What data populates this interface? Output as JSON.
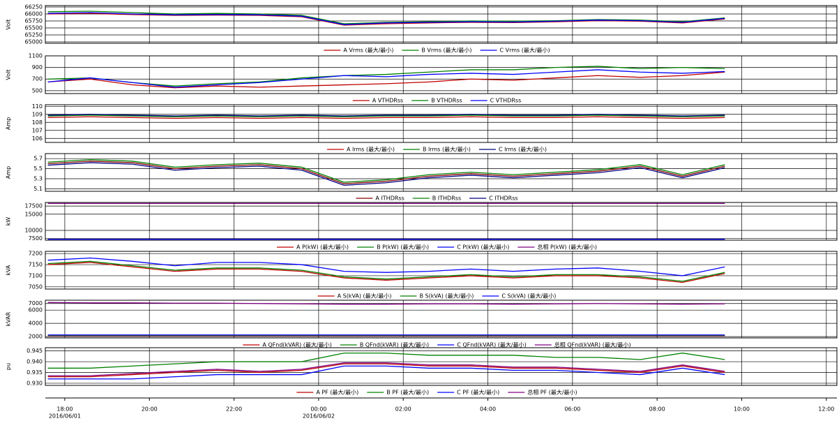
{
  "x_axis": {
    "xlim": [
      17.54,
      36.25
    ],
    "x": [
      17.6,
      18.6,
      19.6,
      20.6,
      21.6,
      22.6,
      23.6,
      24.6,
      25.6,
      26.6,
      27.6,
      28.6,
      29.6,
      30.6,
      31.6,
      32.6,
      33.6
    ],
    "xticks": [
      {
        "value": 18,
        "label": "18:00"
      },
      {
        "value": 20,
        "label": "20:00"
      },
      {
        "value": 22,
        "label": "22:00"
      },
      {
        "value": 24,
        "label": "00:00"
      },
      {
        "value": 26,
        "label": "02:00"
      },
      {
        "value": 28,
        "label": "04:00"
      },
      {
        "value": 30,
        "label": "06:00"
      },
      {
        "value": 32,
        "label": "08:00"
      },
      {
        "value": 34,
        "label": "10:00"
      },
      {
        "value": 36,
        "label": "12:00"
      }
    ],
    "date_labels": [
      {
        "value": 18,
        "label": "2016/06/01"
      },
      {
        "value": 24,
        "label": "2016/06/02"
      }
    ]
  },
  "chart_data": [
    {
      "type": "line",
      "ylabel": "Volt",
      "ylim": [
        64950,
        66300
      ],
      "yticks": [
        65000,
        65250,
        65500,
        65750,
        66000,
        66250
      ],
      "grid": true,
      "series": [
        {
          "name": "A Vrms (最大/最小)",
          "color": "#c00000",
          "values": [
            66000,
            66020,
            65980,
            65950,
            65960,
            65950,
            65900,
            65600,
            65650,
            65680,
            65700,
            65690,
            65720,
            65760,
            65740,
            65680,
            65820
          ]
        },
        {
          "name": "B Vrms (最大/最小)",
          "color": "#008000",
          "values": [
            66080,
            66100,
            66050,
            66000,
            66020,
            66000,
            65950,
            65650,
            65700,
            65720,
            65750,
            65740,
            65760,
            65800,
            65780,
            65720,
            65860
          ]
        },
        {
          "name": "C Vrms (最大/最小)",
          "color": "#0000ff",
          "values": [
            66020,
            66050,
            66000,
            65970,
            65980,
            65970,
            65920,
            65620,
            65680,
            65700,
            65720,
            65710,
            65740,
            65780,
            65760,
            65700,
            65840
          ]
        }
      ]
    },
    {
      "type": "line",
      "ylabel": "Volt",
      "ylim": [
        450,
        1100
      ],
      "yticks": [
        500,
        700,
        900,
        1100
      ],
      "grid": true,
      "series": [
        {
          "name": "A VTHDRss",
          "color": "#c00000",
          "values": [
            650,
            700,
            600,
            550,
            580,
            560,
            580,
            600,
            620,
            650,
            700,
            680,
            720,
            760,
            730,
            760,
            820
          ]
        },
        {
          "name": "B VTHDRss",
          "color": "#008000",
          "values": [
            700,
            720,
            640,
            580,
            620,
            650,
            720,
            760,
            780,
            820,
            860,
            860,
            900,
            920,
            880,
            900,
            880
          ]
        },
        {
          "name": "C VTHDRss",
          "color": "#0000ff",
          "values": [
            650,
            720,
            640,
            560,
            600,
            640,
            700,
            760,
            740,
            780,
            800,
            780,
            820,
            860,
            820,
            800,
            830
          ]
        }
      ]
    },
    {
      "type": "line",
      "ylabel": "Amp",
      "ylim": [
        105.5,
        110.2
      ],
      "yticks": [
        106,
        107,
        108,
        109,
        110
      ],
      "grid": true,
      "series": [
        {
          "name": "A Irms (最大/最小)",
          "color": "#c00000",
          "values": [
            108.6,
            108.7,
            108.6,
            108.5,
            108.6,
            108.5,
            108.6,
            108.5,
            108.6,
            108.6,
            108.7,
            108.6,
            108.6,
            108.7,
            108.6,
            108.5,
            108.6
          ]
        },
        {
          "name": "B Irms (最大/最小)",
          "color": "#008000",
          "values": [
            108.8,
            108.9,
            108.8,
            108.7,
            108.8,
            108.7,
            108.8,
            108.7,
            108.8,
            108.8,
            108.9,
            108.8,
            108.8,
            108.9,
            108.8,
            108.7,
            108.8
          ]
        },
        {
          "name": "C Irms (最大/最小)",
          "color": "#000080",
          "values": [
            108.9,
            109.0,
            108.9,
            108.8,
            108.9,
            108.8,
            108.9,
            108.8,
            108.9,
            108.9,
            109.0,
            108.9,
            108.9,
            109.0,
            108.9,
            108.8,
            108.9
          ]
        }
      ]
    },
    {
      "type": "line",
      "ylabel": "Amp",
      "ylim": [
        5.05,
        5.8
      ],
      "yticks": [
        5.1,
        5.3,
        5.5,
        5.7
      ],
      "grid": true,
      "series": [
        {
          "name": "A ITHDRss",
          "color": "#800000",
          "values": [
            5.6,
            5.65,
            5.62,
            5.5,
            5.55,
            5.58,
            5.5,
            5.2,
            5.25,
            5.35,
            5.4,
            5.35,
            5.4,
            5.45,
            5.55,
            5.35,
            5.55
          ]
        },
        {
          "name": "B ITHDRss",
          "color": "#008000",
          "values": [
            5.63,
            5.68,
            5.65,
            5.53,
            5.58,
            5.61,
            5.53,
            5.23,
            5.28,
            5.38,
            5.43,
            5.38,
            5.43,
            5.48,
            5.58,
            5.38,
            5.58
          ]
        },
        {
          "name": "C ITHDRss",
          "color": "#000080",
          "values": [
            5.57,
            5.62,
            5.59,
            5.47,
            5.52,
            5.55,
            5.47,
            5.17,
            5.22,
            5.32,
            5.37,
            5.32,
            5.37,
            5.42,
            5.52,
            5.32,
            5.52
          ]
        }
      ]
    },
    {
      "type": "line",
      "ylabel": "kW",
      "ylim": [
        7000,
        18600
      ],
      "yticks": [
        7500,
        10000,
        15000,
        17500
      ],
      "grid": true,
      "series": [
        {
          "name": "A P(kW) (最大/最小)",
          "color": "#c00000",
          "values": [
            7150,
            7150,
            7150,
            7150,
            7150,
            7150,
            7150,
            7150,
            7150,
            7150,
            7150,
            7150,
            7150,
            7150,
            7150,
            7150,
            7150
          ]
        },
        {
          "name": "B P(kW) (最大/最小)",
          "color": "#008000",
          "values": [
            7200,
            7200,
            7200,
            7200,
            7200,
            7200,
            7200,
            7200,
            7200,
            7200,
            7200,
            7200,
            7200,
            7200,
            7200,
            7200,
            7200
          ]
        },
        {
          "name": "C P(kW) (最大/最小)",
          "color": "#0000ff",
          "values": [
            7250,
            7250,
            7250,
            7250,
            7250,
            7250,
            7250,
            7250,
            7250,
            7250,
            7250,
            7250,
            7250,
            7250,
            7250,
            7250,
            7250
          ]
        },
        {
          "name": "总相 P(kW) (最大/最小)",
          "color": "#800080",
          "values": [
            18300,
            18300,
            18300,
            18300,
            18300,
            18300,
            18300,
            18300,
            18300,
            18300,
            18300,
            18300,
            18300,
            18300,
            18300,
            18300,
            18300
          ]
        }
      ]
    },
    {
      "type": "line",
      "ylabel": "kVA",
      "ylim": [
        7040,
        7210
      ],
      "yticks": [
        7050,
        7100,
        7150,
        7200
      ],
      "grid": true,
      "series": [
        {
          "name": "A S(kVA) (最大/最小)",
          "color": "#c00000",
          "values": [
            7150,
            7160,
            7140,
            7120,
            7130,
            7130,
            7120,
            7090,
            7080,
            7090,
            7100,
            7090,
            7100,
            7100,
            7090,
            7070,
            7110
          ]
        },
        {
          "name": "B S(kVA) (最大/最小)",
          "color": "#008000",
          "values": [
            7155,
            7165,
            7145,
            7125,
            7135,
            7135,
            7125,
            7095,
            7085,
            7095,
            7105,
            7095,
            7105,
            7105,
            7095,
            7075,
            7115
          ]
        },
        {
          "name": "C S(kVA) (最大/最小)",
          "color": "#0000ff",
          "values": [
            7170,
            7180,
            7165,
            7145,
            7160,
            7160,
            7150,
            7120,
            7115,
            7120,
            7130,
            7120,
            7130,
            7135,
            7120,
            7100,
            7140
          ]
        }
      ]
    },
    {
      "type": "line",
      "ylabel": "kVAR",
      "ylim": [
        1800,
        7500
      ],
      "yticks": [
        2000,
        4000,
        6000,
        7000
      ],
      "grid": true,
      "series": [
        {
          "name": "A QFnd(kVAR) (最大/最小)",
          "color": "#c00000",
          "values": [
            2150,
            2150,
            2150,
            2150,
            2150,
            2150,
            2150,
            2150,
            2150,
            2150,
            2150,
            2150,
            2150,
            2150,
            2150,
            2150,
            2150
          ]
        },
        {
          "name": "B QFnd(kVAR) (最大/最小)",
          "color": "#008000",
          "values": [
            2200,
            2200,
            2200,
            2200,
            2200,
            2200,
            2200,
            2200,
            2200,
            2200,
            2200,
            2200,
            2200,
            2200,
            2200,
            2200,
            2200
          ]
        },
        {
          "name": "C QFnd(kVAR) (最大/最小)",
          "color": "#0000ff",
          "values": [
            2250,
            2250,
            2250,
            2250,
            2250,
            2250,
            2250,
            2250,
            2250,
            2250,
            2250,
            2250,
            2250,
            2250,
            2250,
            2250,
            2250
          ]
        },
        {
          "name": "总相 QFnd(kVAR) (最大/最小)",
          "color": "#800080",
          "values": [
            7150,
            7100,
            7100,
            7050,
            7050,
            7000,
            6950,
            6900,
            6900,
            6950,
            6950,
            6900,
            6950,
            7000,
            6950,
            6900,
            6950
          ]
        }
      ]
    },
    {
      "type": "line",
      "ylabel": "pu",
      "ylim": [
        0.929,
        0.9465
      ],
      "yticks": [
        {
          "value": 0.93,
          "label": "0.930"
        },
        {
          "value": 0.935,
          "label": "0.935"
        },
        {
          "value": 0.94,
          "label": "0.940"
        },
        {
          "value": 0.945,
          "label": "0.945"
        }
      ],
      "grid": true,
      "series": [
        {
          "name": "A PF (最大/最小)",
          "color": "#c00000",
          "values": [
            0.933,
            0.933,
            0.934,
            0.935,
            0.936,
            0.935,
            0.936,
            0.939,
            0.939,
            0.938,
            0.938,
            0.937,
            0.937,
            0.936,
            0.935,
            0.938,
            0.935
          ]
        },
        {
          "name": "B PF (最大/最小)",
          "color": "#008000",
          "values": [
            0.937,
            0.937,
            0.938,
            0.939,
            0.94,
            0.94,
            0.94,
            0.944,
            0.944,
            0.943,
            0.943,
            0.943,
            0.942,
            0.942,
            0.941,
            0.944,
            0.941
          ]
        },
        {
          "name": "C PF (最大/最小)",
          "color": "#0000ff",
          "values": [
            0.932,
            0.932,
            0.932,
            0.933,
            0.934,
            0.934,
            0.934,
            0.938,
            0.938,
            0.937,
            0.937,
            0.936,
            0.936,
            0.935,
            0.934,
            0.937,
            0.934
          ]
        },
        {
          "name": "总相 PF (最大/最小)",
          "color": "#800080",
          "values": [
            0.9335,
            0.9335,
            0.9345,
            0.9355,
            0.9365,
            0.9355,
            0.9365,
            0.9395,
            0.9395,
            0.9385,
            0.9385,
            0.9375,
            0.9375,
            0.9365,
            0.9355,
            0.9385,
            0.9355
          ]
        }
      ]
    }
  ]
}
